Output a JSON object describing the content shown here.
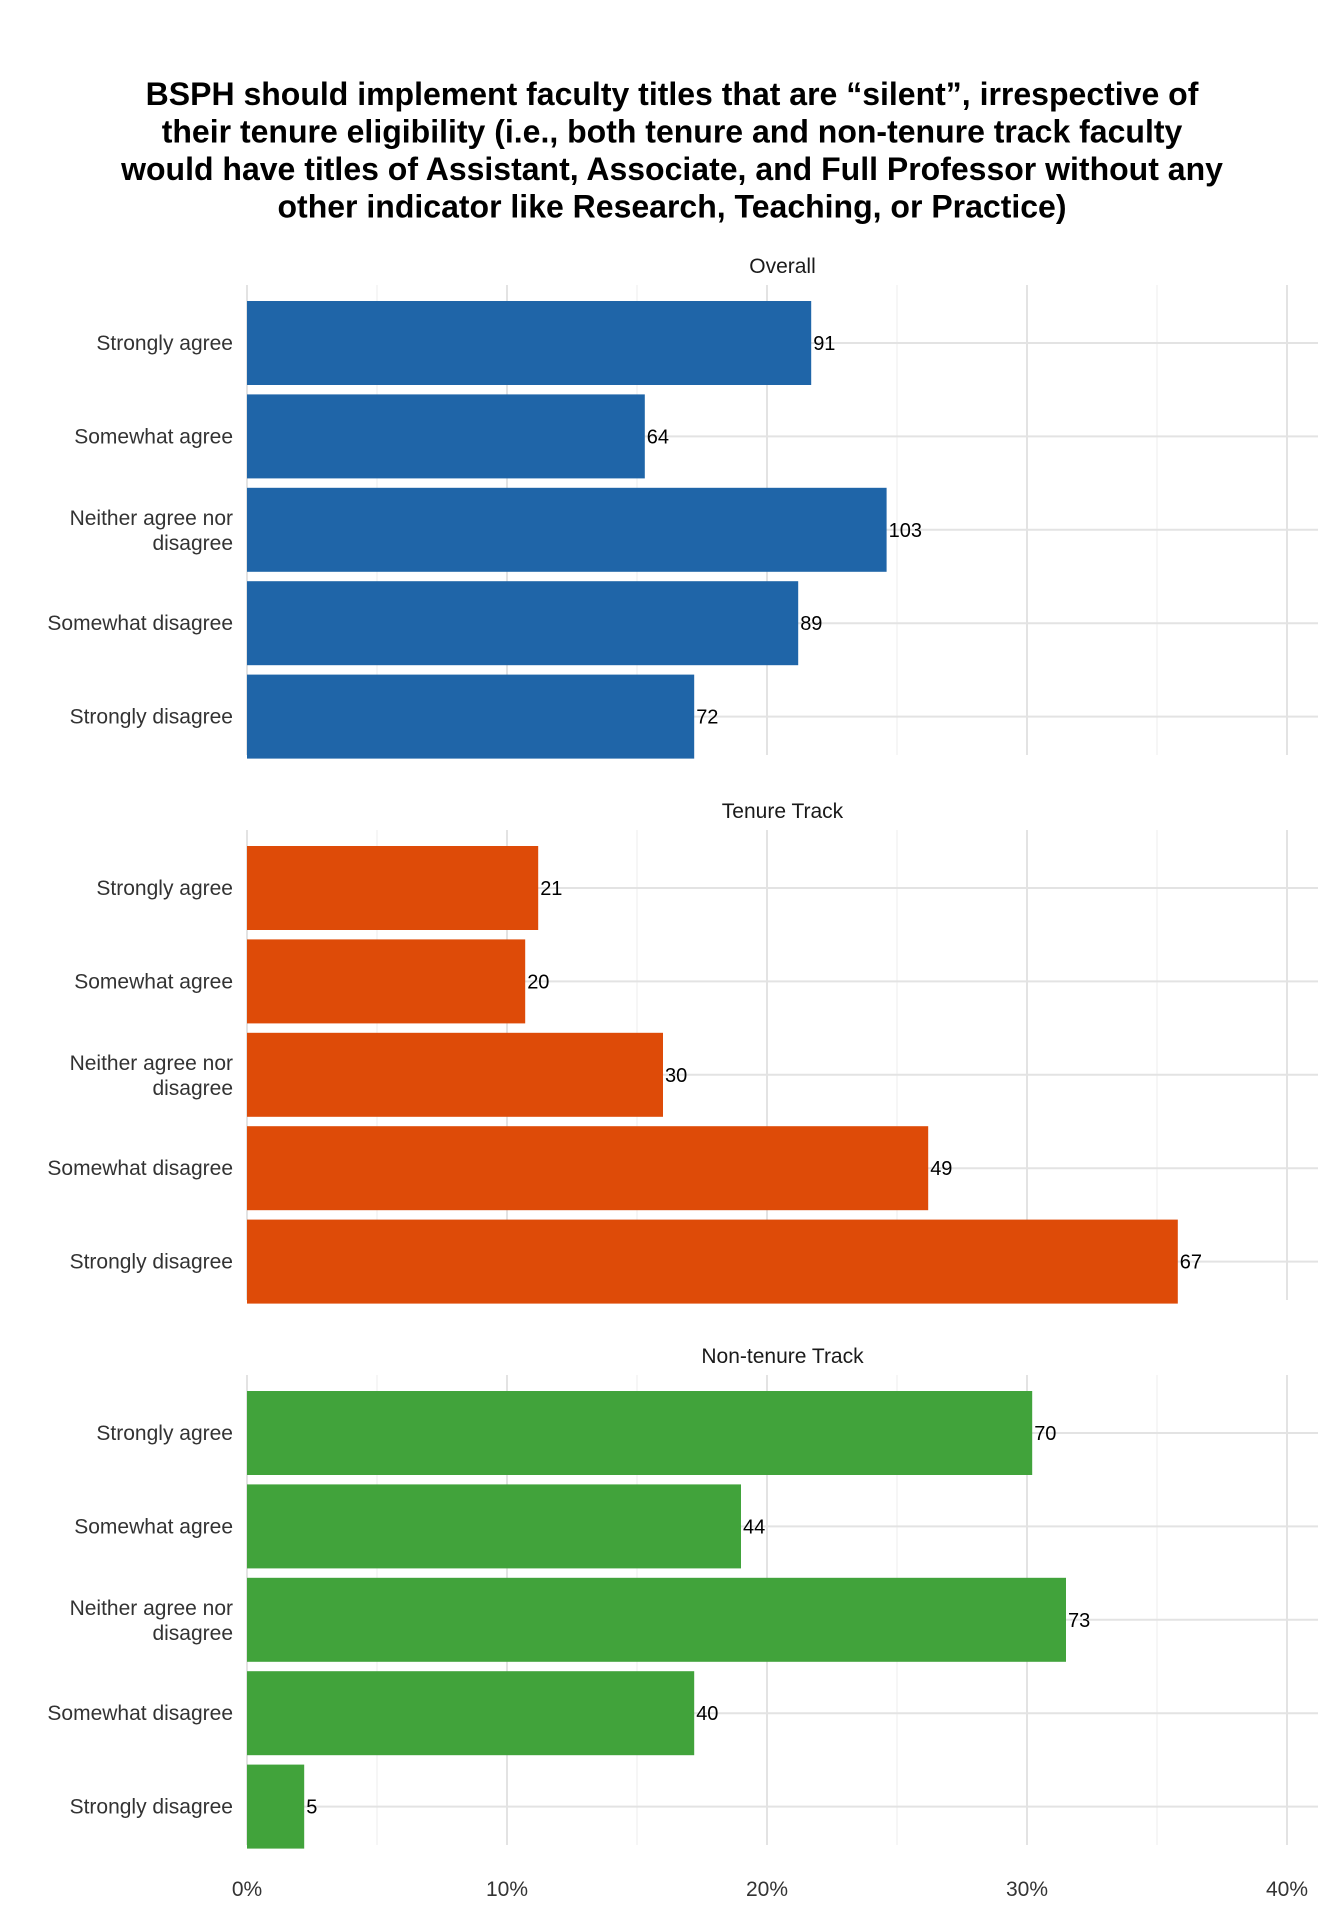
{
  "chart_data": {
    "type": "bar",
    "orientation": "horizontal",
    "title": "BSPH should implement faculty titles that are “silent”, irrespective of their tenure eligibility (i.e., both tenure and non-tenure track faculty would have titles of Assistant, Associate, and Full Professor without any other indicator like Research, Teaching, or Practice)",
    "title_lines": [
      "BSPH should implement faculty titles that are “silent”, irrespective of",
      "their tenure eligibility (i.e., both tenure and non-tenure track faculty",
      "would have titles of Assistant, Associate, and Full Professor without any",
      "other indicator like Research, Teaching, or Practice)"
    ],
    "categories": [
      "Strongly agree",
      "Somewhat agree",
      "Neither agree nor disagree",
      "Somewhat disagree",
      "Strongly disagree"
    ],
    "category_lines": [
      [
        "Strongly agree"
      ],
      [
        "Somewhat agree"
      ],
      [
        "Neither agree nor",
        "disagree"
      ],
      [
        "Somewhat disagree"
      ],
      [
        "Strongly disagree"
      ]
    ],
    "xlabel": "",
    "ylabel": "",
    "xlim": [
      0,
      0.41
    ],
    "x_ticks": [
      0,
      0.1,
      0.2,
      0.3,
      0.4
    ],
    "x_tick_labels": [
      "0%",
      "10%",
      "20%",
      "30%",
      "40%"
    ],
    "grid": true,
    "legend": "none",
    "panels": [
      {
        "name": "Overall",
        "color": "#1f65a8",
        "counts": [
          91,
          64,
          103,
          89,
          72
        ],
        "percent": [
          0.217,
          0.153,
          0.246,
          0.212,
          0.172
        ]
      },
      {
        "name": "Tenure Track",
        "color": "#de4b08",
        "counts": [
          21,
          20,
          30,
          49,
          67
        ],
        "percent": [
          0.112,
          0.107,
          0.16,
          0.262,
          0.358
        ]
      },
      {
        "name": "Non-tenure Track",
        "color": "#41a33b",
        "counts": [
          70,
          44,
          73,
          40,
          5
        ],
        "percent": [
          0.302,
          0.19,
          0.315,
          0.172,
          0.022
        ]
      }
    ]
  }
}
